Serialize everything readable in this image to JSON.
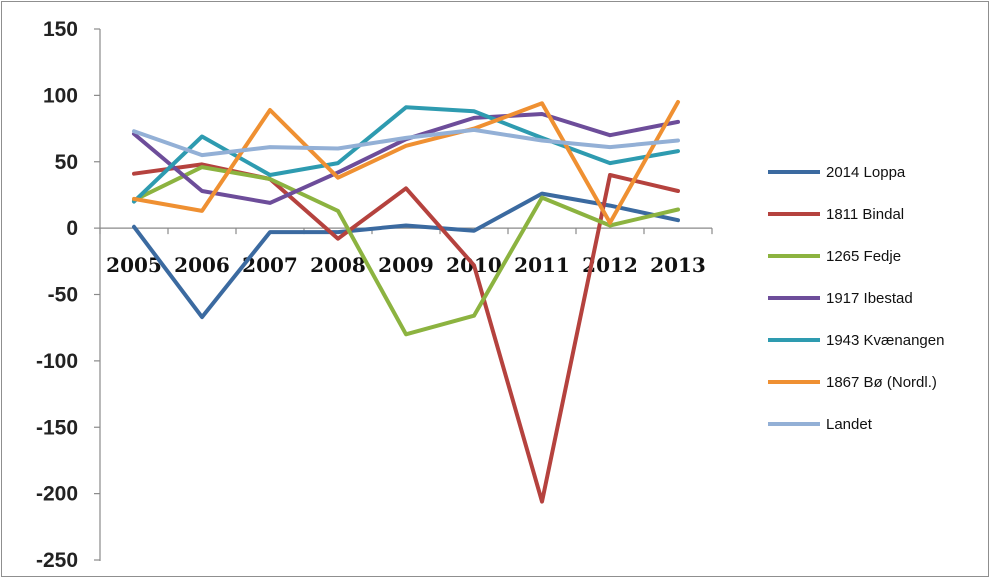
{
  "chart_data": {
    "type": "line",
    "title": "",
    "xlabel": "",
    "ylabel": "",
    "categories": [
      "2005",
      "2006",
      "2007",
      "2008",
      "2009",
      "2010",
      "2011",
      "2012",
      "2013"
    ],
    "ylim": [
      -250,
      150
    ],
    "yticks": [
      "150",
      "100",
      "50",
      "0",
      "-50",
      "-100",
      "-150",
      "-200",
      "-250"
    ],
    "grid": false,
    "legend_position": "right",
    "series": [
      {
        "name": "2014 Loppa",
        "color": "#3b6aa0",
        "values": [
          1,
          -67,
          -3,
          -3,
          2,
          -2,
          26,
          17,
          6
        ]
      },
      {
        "name": "1811 Bindal",
        "color": "#b5423e",
        "values": [
          41,
          48,
          37,
          -8,
          30,
          -28,
          -206,
          40,
          28
        ]
      },
      {
        "name": "1265 Fedje",
        "color": "#8cb340",
        "values": [
          21,
          46,
          37,
          13,
          -80,
          -66,
          23,
          2,
          14
        ]
      },
      {
        "name": "1917 Ibestad",
        "color": "#6d4d9a",
        "values": [
          71,
          28,
          19,
          42,
          67,
          83,
          86,
          70,
          80
        ]
      },
      {
        "name": "1943 Kvænangen",
        "color": "#2e9bb0",
        "values": [
          20,
          69,
          40,
          49,
          91,
          88,
          68,
          49,
          58
        ]
      },
      {
        "name": "1867 Bø (Nordl.)",
        "color": "#ef9032",
        "values": [
          22,
          13,
          89,
          38,
          62,
          75,
          94,
          4,
          95
        ]
      },
      {
        "name": "Landet",
        "color": "#93b0d6",
        "values": [
          73,
          55,
          61,
          60,
          68,
          74,
          66,
          61,
          66
        ]
      }
    ]
  }
}
